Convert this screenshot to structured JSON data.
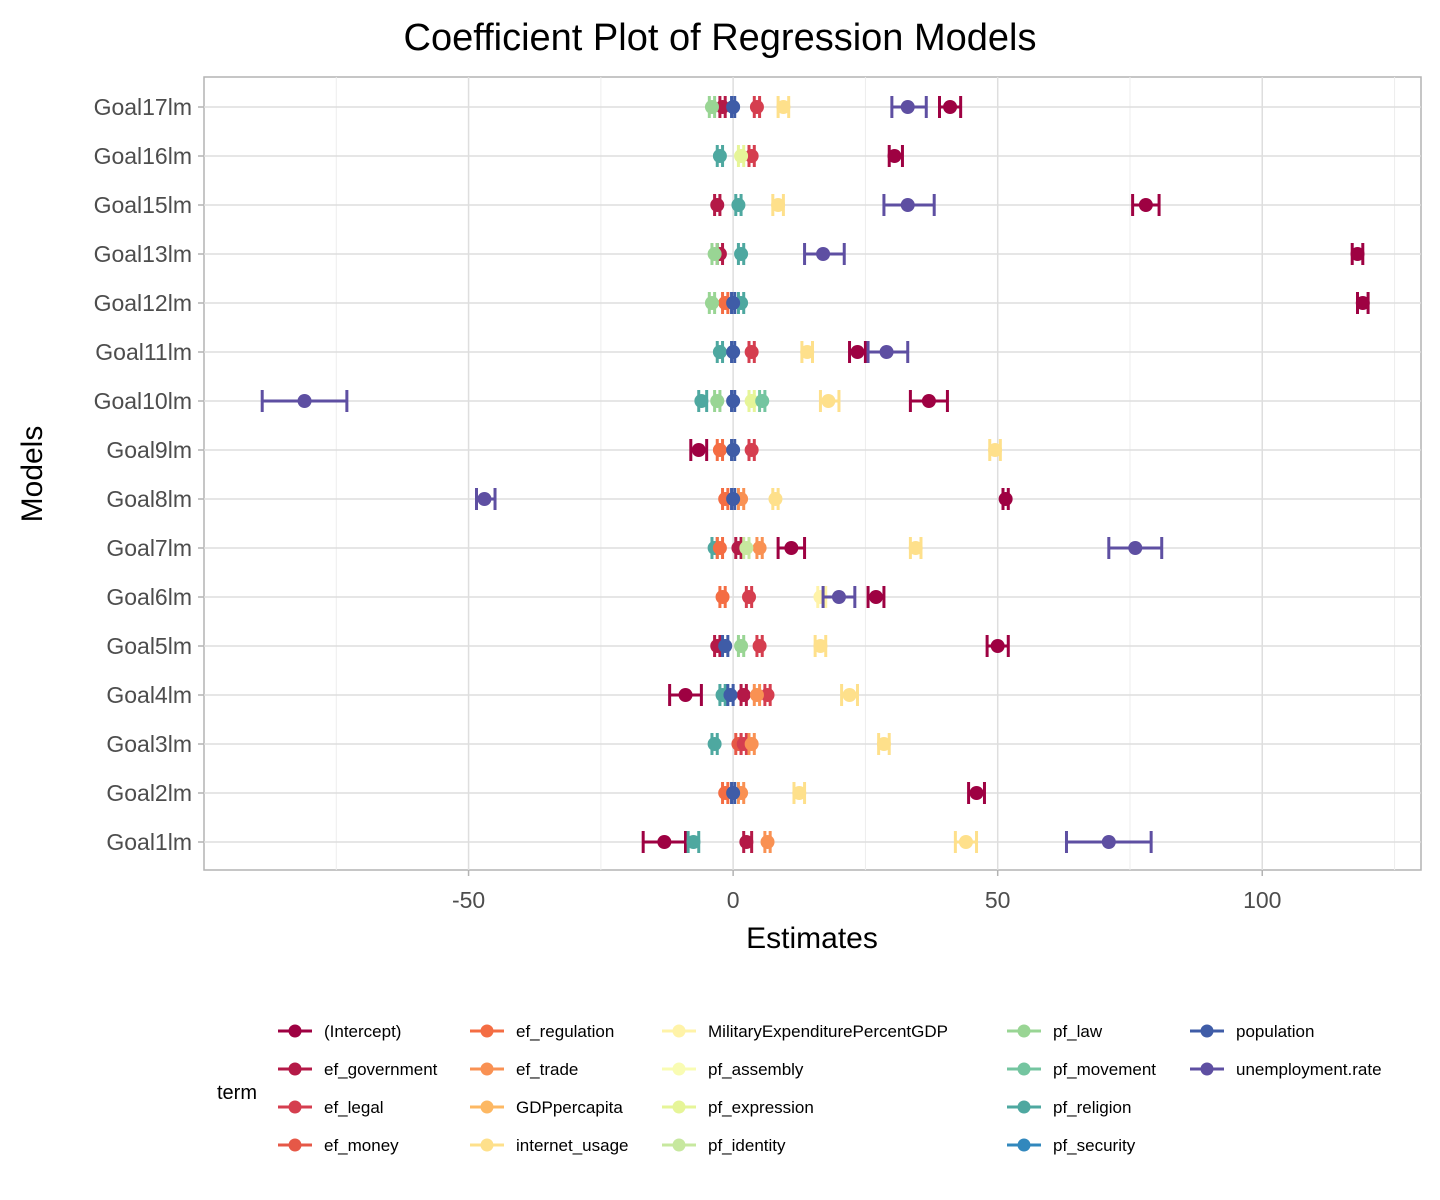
{
  "chart_data": {
    "type": "coefficient-plot",
    "title": "Coefficient Plot of Regression Models",
    "xlabel": "Estimates",
    "ylabel": "Models",
    "xlim": [
      -100,
      130
    ],
    "xticks": [
      -50,
      0,
      50,
      100
    ],
    "grid": true,
    "legend_title": "term",
    "legend_position": "bottom",
    "models": [
      "Goal1lm",
      "Goal2lm",
      "Goal3lm",
      "Goal4lm",
      "Goal5lm",
      "Goal6lm",
      "Goal7lm",
      "Goal8lm",
      "Goal9lm",
      "Goal10lm",
      "Goal11lm",
      "Goal12lm",
      "Goal13lm",
      "Goal15lm",
      "Goal16lm",
      "Goal17lm"
    ],
    "terms": [
      {
        "name": "(Intercept)",
        "color": "#9e0142"
      },
      {
        "name": "ef_government",
        "color": "#b41947"
      },
      {
        "name": "ef_legal",
        "color": "#d53e4f"
      },
      {
        "name": "ef_money",
        "color": "#e65847"
      },
      {
        "name": "ef_regulation",
        "color": "#f46d43"
      },
      {
        "name": "ef_trade",
        "color": "#f99153"
      },
      {
        "name": "GDPpercapita",
        "color": "#fdb863"
      },
      {
        "name": "internet_usage",
        "color": "#fee08b"
      },
      {
        "name": "MilitaryExpenditurePercentGDP",
        "color": "#fff3a8"
      },
      {
        "name": "pf_assembly",
        "color": "#f9fcb3"
      },
      {
        "name": "pf_expression",
        "color": "#e6f598"
      },
      {
        "name": "pf_identity",
        "color": "#c7e89f"
      },
      {
        "name": "pf_law",
        "color": "#99d594"
      },
      {
        "name": "pf_movement",
        "color": "#74c5a0"
      },
      {
        "name": "pf_religion",
        "color": "#4ea8a0"
      },
      {
        "name": "pf_security",
        "color": "#3288bd"
      },
      {
        "name": "population",
        "color": "#3f5ca7"
      },
      {
        "name": "unemployment.rate",
        "color": "#5e4fa2"
      }
    ],
    "points": [
      {
        "model": "Goal1lm",
        "term": "(Intercept)",
        "estimate": -13,
        "low": -17,
        "high": -9
      },
      {
        "model": "Goal1lm",
        "term": "ef_government",
        "estimate": 2.5,
        "low": 2,
        "high": 3.5
      },
      {
        "model": "Goal1lm",
        "term": "ef_trade",
        "estimate": 6.5,
        "low": 6,
        "high": 7
      },
      {
        "model": "Goal1lm",
        "term": "internet_usage",
        "estimate": 44,
        "low": 42,
        "high": 46
      },
      {
        "model": "Goal1lm",
        "term": "pf_religion",
        "estimate": -7.5,
        "low": -8.5,
        "high": -6.5
      },
      {
        "model": "Goal1lm",
        "term": "unemployment.rate",
        "estimate": 71,
        "low": 63,
        "high": 79
      },
      {
        "model": "Goal2lm",
        "term": "(Intercept)",
        "estimate": 46,
        "low": 44.5,
        "high": 47.5
      },
      {
        "model": "Goal2lm",
        "term": "ef_regulation",
        "estimate": -1.5,
        "low": -2,
        "high": -1
      },
      {
        "model": "Goal2lm",
        "term": "ef_trade",
        "estimate": 1.5,
        "low": 1,
        "high": 2
      },
      {
        "model": "Goal2lm",
        "term": "internet_usage",
        "estimate": 12.5,
        "low": 11.5,
        "high": 13.5
      },
      {
        "model": "Goal2lm",
        "term": "population",
        "estimate": 0,
        "low": -0.3,
        "high": 0.3
      },
      {
        "model": "Goal3lm",
        "term": "ef_money",
        "estimate": 1,
        "low": 0.5,
        "high": 1.5
      },
      {
        "model": "Goal3lm",
        "term": "ef_legal",
        "estimate": 2,
        "low": 1.5,
        "high": 2.5
      },
      {
        "model": "Goal3lm",
        "term": "ef_trade",
        "estimate": 3.5,
        "low": 3,
        "high": 4
      },
      {
        "model": "Goal3lm",
        "term": "internet_usage",
        "estimate": 28.5,
        "low": 27.5,
        "high": 29.5
      },
      {
        "model": "Goal3lm",
        "term": "pf_religion",
        "estimate": -3.5,
        "low": -4,
        "high": -3
      },
      {
        "model": "Goal4lm",
        "term": "(Intercept)",
        "estimate": -9,
        "low": -12,
        "high": -6
      },
      {
        "model": "Goal4lm",
        "term": "ef_government",
        "estimate": 2,
        "low": 1.5,
        "high": 2.5
      },
      {
        "model": "Goal4lm",
        "term": "ef_legal",
        "estimate": 6.5,
        "low": 6,
        "high": 7
      },
      {
        "model": "Goal4lm",
        "term": "ef_trade",
        "estimate": 4.5,
        "low": 4,
        "high": 5
      },
      {
        "model": "Goal4lm",
        "term": "internet_usage",
        "estimate": 22,
        "low": 20.5,
        "high": 23.5
      },
      {
        "model": "Goal4lm",
        "term": "pf_religion",
        "estimate": -2,
        "low": -2.5,
        "high": -1.5
      },
      {
        "model": "Goal4lm",
        "term": "population",
        "estimate": -0.5,
        "low": -1,
        "high": 0
      },
      {
        "model": "Goal5lm",
        "term": "(Intercept)",
        "estimate": 50,
        "low": 48,
        "high": 52
      },
      {
        "model": "Goal5lm",
        "term": "ef_government",
        "estimate": -3,
        "low": -3.5,
        "high": -2.5
      },
      {
        "model": "Goal5lm",
        "term": "ef_legal",
        "estimate": 5,
        "low": 4.5,
        "high": 5.5
      },
      {
        "model": "Goal5lm",
        "term": "internet_usage",
        "estimate": 16.5,
        "low": 15.5,
        "high": 17.5
      },
      {
        "model": "Goal5lm",
        "term": "pf_law",
        "estimate": 1.5,
        "low": 1,
        "high": 2
      },
      {
        "model": "Goal5lm",
        "term": "population",
        "estimate": -1.5,
        "low": -2,
        "high": -1
      },
      {
        "model": "Goal6lm",
        "term": "(Intercept)",
        "estimate": 27,
        "low": 25.5,
        "high": 28.5
      },
      {
        "model": "Goal6lm",
        "term": "ef_legal",
        "estimate": 3,
        "low": 2.5,
        "high": 3.5
      },
      {
        "model": "Goal6lm",
        "term": "ef_regulation",
        "estimate": -2,
        "low": -2.5,
        "high": -1.5
      },
      {
        "model": "Goal6lm",
        "term": "MilitaryExpenditurePercentGDP",
        "estimate": 16.5,
        "low": 16,
        "high": 17.5
      },
      {
        "model": "Goal6lm",
        "term": "unemployment.rate",
        "estimate": 20,
        "low": 17,
        "high": 23
      },
      {
        "model": "Goal7lm",
        "term": "(Intercept)",
        "estimate": 11,
        "low": 8.5,
        "high": 13.5
      },
      {
        "model": "Goal7lm",
        "term": "ef_government",
        "estimate": 1,
        "low": 0.5,
        "high": 1.5
      },
      {
        "model": "Goal7lm",
        "term": "ef_trade",
        "estimate": 5,
        "low": 4.5,
        "high": 5.5
      },
      {
        "model": "Goal7lm",
        "term": "internet_usage",
        "estimate": 34.5,
        "low": 33.5,
        "high": 35.5
      },
      {
        "model": "Goal7lm",
        "term": "pf_identity",
        "estimate": 2.5,
        "low": 2,
        "high": 3
      },
      {
        "model": "Goal7lm",
        "term": "pf_religion",
        "estimate": -3.5,
        "low": -4,
        "high": -3
      },
      {
        "model": "Goal7lm",
        "term": "ef_regulation",
        "estimate": -2.5,
        "low": -3,
        "high": -2
      },
      {
        "model": "Goal7lm",
        "term": "unemployment.rate",
        "estimate": 76,
        "low": 71,
        "high": 81
      },
      {
        "model": "Goal8lm",
        "term": "(Intercept)",
        "estimate": 51.5,
        "low": 51,
        "high": 52
      },
      {
        "model": "Goal8lm",
        "term": "ef_regulation",
        "estimate": -1.5,
        "low": -2,
        "high": -1
      },
      {
        "model": "Goal8lm",
        "term": "ef_trade",
        "estimate": 1.5,
        "low": 1,
        "high": 2
      },
      {
        "model": "Goal8lm",
        "term": "internet_usage",
        "estimate": 8,
        "low": 7.5,
        "high": 8.5
      },
      {
        "model": "Goal8lm",
        "term": "population",
        "estimate": 0,
        "low": -0.3,
        "high": 0.3
      },
      {
        "model": "Goal8lm",
        "term": "unemployment.rate",
        "estimate": -47,
        "low": -48.5,
        "high": -45
      },
      {
        "model": "Goal9lm",
        "term": "(Intercept)",
        "estimate": -6.5,
        "low": -8,
        "high": -5
      },
      {
        "model": "Goal9lm",
        "term": "ef_legal",
        "estimate": 3.5,
        "low": 3,
        "high": 4
      },
      {
        "model": "Goal9lm",
        "term": "ef_regulation",
        "estimate": -2.5,
        "low": -3,
        "high": -2
      },
      {
        "model": "Goal9lm",
        "term": "internet_usage",
        "estimate": 49.5,
        "low": 48.5,
        "high": 50.5
      },
      {
        "model": "Goal9lm",
        "term": "population",
        "estimate": 0,
        "low": -0.3,
        "high": 0.3
      },
      {
        "model": "Goal10lm",
        "term": "(Intercept)",
        "estimate": 37,
        "low": 33.5,
        "high": 40.5
      },
      {
        "model": "Goal10lm",
        "term": "internet_usage",
        "estimate": 18,
        "low": 16.5,
        "high": 20
      },
      {
        "model": "Goal10lm",
        "term": "pf_expression",
        "estimate": 3.5,
        "low": 3,
        "high": 4
      },
      {
        "model": "Goal10lm",
        "term": "pf_movement",
        "estimate": 5.5,
        "low": 5,
        "high": 6
      },
      {
        "model": "Goal10lm",
        "term": "pf_religion",
        "estimate": -6,
        "low": -6.5,
        "high": -5
      },
      {
        "model": "Goal10lm",
        "term": "pf_law",
        "estimate": -3,
        "low": -3.5,
        "high": -2.5
      },
      {
        "model": "Goal10lm",
        "term": "population",
        "estimate": 0,
        "low": -0.3,
        "high": 0.3
      },
      {
        "model": "Goal10lm",
        "term": "unemployment.rate",
        "estimate": -81,
        "low": -89,
        "high": -73
      },
      {
        "model": "Goal11lm",
        "term": "(Intercept)",
        "estimate": 23.5,
        "low": 22,
        "high": 25
      },
      {
        "model": "Goal11lm",
        "term": "ef_legal",
        "estimate": 3.5,
        "low": 3,
        "high": 4
      },
      {
        "model": "Goal11lm",
        "term": "internet_usage",
        "estimate": 14,
        "low": 13,
        "high": 15
      },
      {
        "model": "Goal11lm",
        "term": "pf_religion",
        "estimate": -2.5,
        "low": -3,
        "high": -2
      },
      {
        "model": "Goal11lm",
        "term": "population",
        "estimate": 0,
        "low": -0.3,
        "high": 0.3
      },
      {
        "model": "Goal11lm",
        "term": "unemployment.rate",
        "estimate": 29,
        "low": 25.5,
        "high": 33
      },
      {
        "model": "Goal12lm",
        "term": "(Intercept)",
        "estimate": 119,
        "low": 118,
        "high": 120
      },
      {
        "model": "Goal12lm",
        "term": "ef_regulation",
        "estimate": -1.5,
        "low": -2,
        "high": -1
      },
      {
        "model": "Goal12lm",
        "term": "pf_law",
        "estimate": -4,
        "low": -4.5,
        "high": -3.5
      },
      {
        "model": "Goal12lm",
        "term": "pf_religion",
        "estimate": 1.5,
        "low": 1,
        "high": 2
      },
      {
        "model": "Goal12lm",
        "term": "population",
        "estimate": 0,
        "low": -0.3,
        "high": 0.3
      },
      {
        "model": "Goal13lm",
        "term": "(Intercept)",
        "estimate": 118,
        "low": 117,
        "high": 119
      },
      {
        "model": "Goal13lm",
        "term": "ef_government",
        "estimate": -2.5,
        "low": -3,
        "high": -2
      },
      {
        "model": "Goal13lm",
        "term": "pf_law",
        "estimate": -3.5,
        "low": -4,
        "high": -3
      },
      {
        "model": "Goal13lm",
        "term": "pf_religion",
        "estimate": 1.5,
        "low": 1,
        "high": 2
      },
      {
        "model": "Goal13lm",
        "term": "unemployment.rate",
        "estimate": 17,
        "low": 13.5,
        "high": 21
      },
      {
        "model": "Goal15lm",
        "term": "(Intercept)",
        "estimate": 78,
        "low": 75.5,
        "high": 80.5
      },
      {
        "model": "Goal15lm",
        "term": "ef_government",
        "estimate": -3,
        "low": -3.5,
        "high": -2.5
      },
      {
        "model": "Goal15lm",
        "term": "internet_usage",
        "estimate": 8.5,
        "low": 7.5,
        "high": 9.5
      },
      {
        "model": "Goal15lm",
        "term": "pf_religion",
        "estimate": 1,
        "low": 0.5,
        "high": 1.5
      },
      {
        "model": "Goal15lm",
        "term": "unemployment.rate",
        "estimate": 33,
        "low": 28.5,
        "high": 38
      },
      {
        "model": "Goal16lm",
        "term": "(Intercept)",
        "estimate": 30.5,
        "low": 29.5,
        "high": 32
      },
      {
        "model": "Goal16lm",
        "term": "ef_legal",
        "estimate": 3.5,
        "low": 3,
        "high": 4
      },
      {
        "model": "Goal16lm",
        "term": "pf_religion",
        "estimate": -2.5,
        "low": -3,
        "high": -2
      },
      {
        "model": "Goal16lm",
        "term": "pf_expression",
        "estimate": 1.5,
        "low": 1,
        "high": 2
      },
      {
        "model": "Goal17lm",
        "term": "(Intercept)",
        "estimate": 41,
        "low": 39,
        "high": 43
      },
      {
        "model": "Goal17lm",
        "term": "ef_government",
        "estimate": -2,
        "low": -2.5,
        "high": -1.5
      },
      {
        "model": "Goal17lm",
        "term": "ef_legal",
        "estimate": 4.5,
        "low": 4,
        "high": 5
      },
      {
        "model": "Goal17lm",
        "term": "internet_usage",
        "estimate": 9.5,
        "low": 8.5,
        "high": 10.5
      },
      {
        "model": "Goal17lm",
        "term": "pf_law",
        "estimate": -4,
        "low": -4.5,
        "high": -3.5
      },
      {
        "model": "Goal17lm",
        "term": "population",
        "estimate": 0,
        "low": -0.3,
        "high": 0.3
      },
      {
        "model": "Goal17lm",
        "term": "unemployment.rate",
        "estimate": 33,
        "low": 30,
        "high": 36.5
      }
    ]
  }
}
